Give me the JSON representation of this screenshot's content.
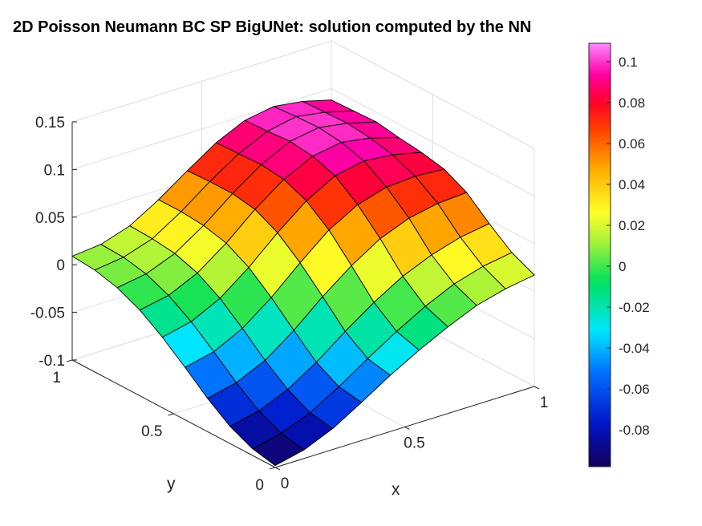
{
  "chart_data": {
    "type": "surface",
    "title": "2D Poisson Neumann BC SP BigUNet: solution computed by the NN",
    "xlabel": "x",
    "ylabel": "y",
    "zlabel": "",
    "x": [
      0,
      0.1111,
      0.2222,
      0.3333,
      0.4444,
      0.5556,
      0.6667,
      0.7778,
      0.8889,
      1
    ],
    "y": [
      0,
      0.1111,
      0.2222,
      0.3333,
      0.4444,
      0.5556,
      0.6667,
      0.7778,
      0.8889,
      1
    ],
    "z_rows_by_y": [
      [
        -0.098,
        -0.091,
        -0.078,
        -0.06,
        -0.041,
        -0.024,
        -0.009,
        0.004,
        0.012,
        0.017
      ],
      [
        -0.093,
        -0.086,
        -0.074,
        -0.056,
        -0.036,
        -0.017,
        0.0,
        0.014,
        0.023,
        0.028
      ],
      [
        -0.082,
        -0.075,
        -0.062,
        -0.043,
        -0.02,
        0.001,
        0.019,
        0.032,
        0.041,
        0.046
      ],
      [
        -0.065,
        -0.058,
        -0.044,
        -0.022,
        0.004,
        0.027,
        0.046,
        0.058,
        0.064,
        0.066
      ],
      [
        -0.045,
        -0.038,
        -0.023,
        0.0,
        0.027,
        0.052,
        0.069,
        0.078,
        0.08,
        0.078
      ],
      [
        -0.026,
        -0.019,
        -0.004,
        0.019,
        0.046,
        0.07,
        0.087,
        0.093,
        0.09,
        0.083
      ],
      [
        -0.01,
        -0.004,
        0.01,
        0.032,
        0.058,
        0.08,
        0.095,
        0.1,
        0.095,
        0.086
      ],
      [
        0.001,
        0.006,
        0.018,
        0.038,
        0.062,
        0.083,
        0.098,
        0.103,
        0.098,
        0.09
      ],
      [
        0.007,
        0.011,
        0.021,
        0.04,
        0.062,
        0.082,
        0.096,
        0.102,
        0.097,
        0.089
      ],
      [
        0.009,
        0.012,
        0.022,
        0.04,
        0.061,
        0.081,
        0.095,
        0.1,
        0.096,
        0.088
      ]
    ],
    "xlim": [
      0,
      1
    ],
    "ylim": [
      0,
      1
    ],
    "zlim": [
      -0.1,
      0.15
    ],
    "xticks": [
      0,
      0.5,
      1
    ],
    "xtick_labels": [
      "0",
      "0.5",
      "1"
    ],
    "yticks": [
      0,
      0.5,
      1
    ],
    "ytick_labels": [
      "0",
      "0.5",
      "1"
    ],
    "zticks": [
      -0.1,
      -0.05,
      0,
      0.05,
      0.1,
      0.15
    ],
    "ztick_labels": [
      "-0.1",
      "-0.05",
      "0",
      "0.05",
      "0.1",
      "0.15"
    ],
    "colormap": "hsv",
    "colorbar": {
      "limits": [
        -0.098,
        0.109
      ],
      "ticks": [
        -0.08,
        -0.06,
        -0.04,
        -0.02,
        0,
        0.02,
        0.04,
        0.06,
        0.08,
        0.1
      ],
      "tick_labels": [
        "-0.08",
        "-0.06",
        "-0.04",
        "-0.02",
        "0",
        "0.02",
        "0.04",
        "0.06",
        "0.08",
        "0.1"
      ],
      "placement": "right"
    },
    "grid": true
  }
}
